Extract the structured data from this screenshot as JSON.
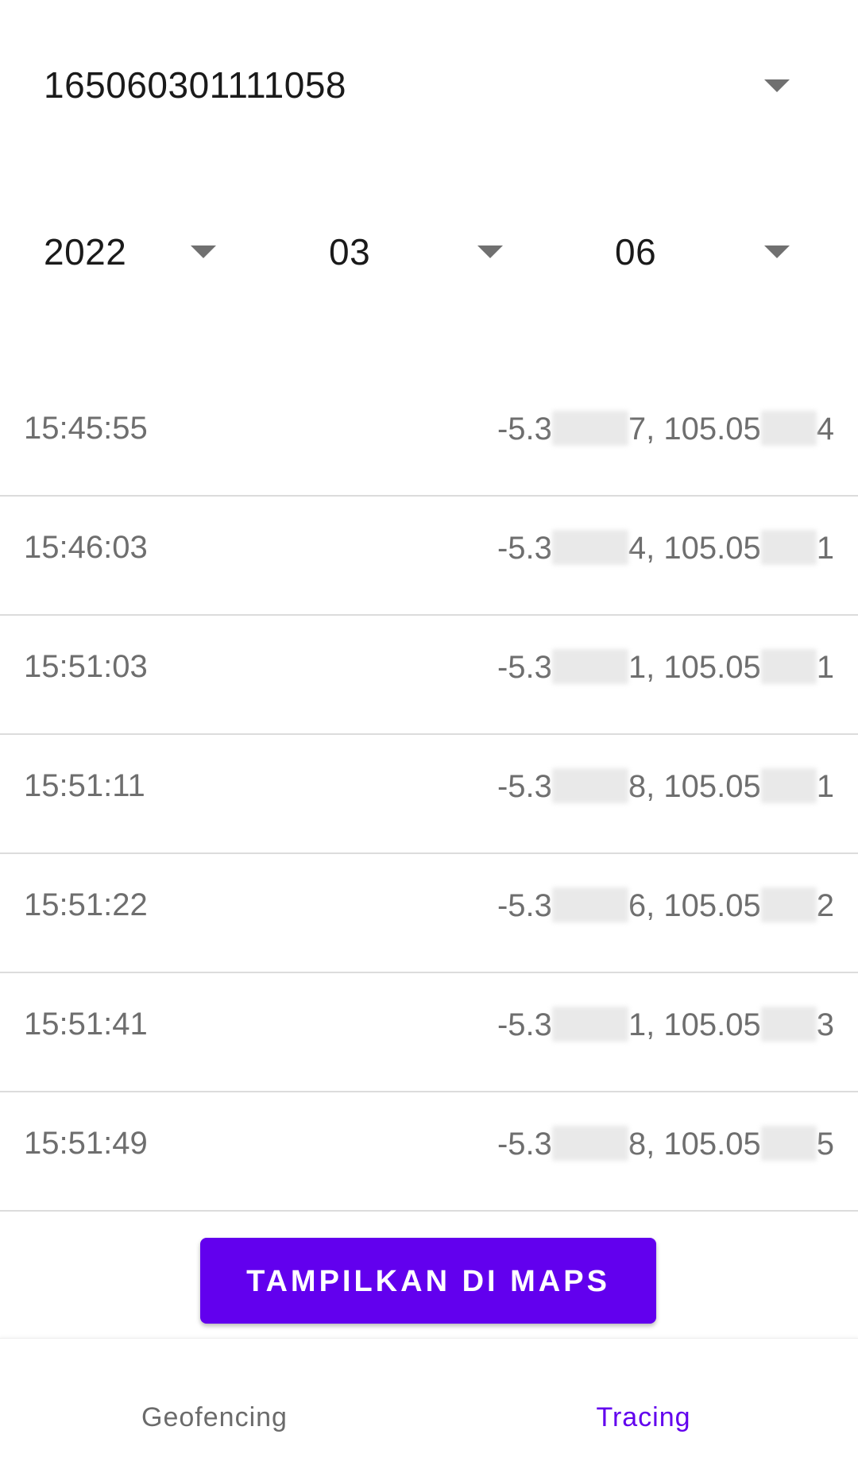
{
  "device_spinner": {
    "value": "165060301111058",
    "icon": "caret-down-icon"
  },
  "date_spinners": {
    "year": "2022",
    "month": "03",
    "day": "06"
  },
  "records": [
    {
      "time": "15:45:55",
      "lat_prefix": "-5.3",
      "lat_suffix": "7, 105.05",
      "lon_suffix": "4"
    },
    {
      "time": "15:46:03",
      "lat_prefix": "-5.3",
      "lat_suffix": "4, 105.05",
      "lon_suffix": "1"
    },
    {
      "time": "15:51:03",
      "lat_prefix": "-5.3",
      "lat_suffix": "1, 105.05",
      "lon_suffix": "1"
    },
    {
      "time": "15:51:11",
      "lat_prefix": "-5.3",
      "lat_suffix": "8, 105.05",
      "lon_suffix": "1"
    },
    {
      "time": "15:51:22",
      "lat_prefix": "-5.3",
      "lat_suffix": "6, 105.05",
      "lon_suffix": "2"
    },
    {
      "time": "15:51:41",
      "lat_prefix": "-5.3",
      "lat_suffix": "1, 105.05",
      "lon_suffix": "3"
    },
    {
      "time": "15:51:49",
      "lat_prefix": "-5.3",
      "lat_suffix": "8, 105.05",
      "lon_suffix": "5"
    }
  ],
  "actions": {
    "show_on_maps": "TAMPILKAN DI MAPS"
  },
  "bottom_nav": {
    "geofencing": "Geofencing",
    "tracing": "Tracing",
    "active_color": "#6200ee",
    "inactive_color": "#6b6b6b"
  },
  "colors": {
    "accent": "#6200ee"
  }
}
